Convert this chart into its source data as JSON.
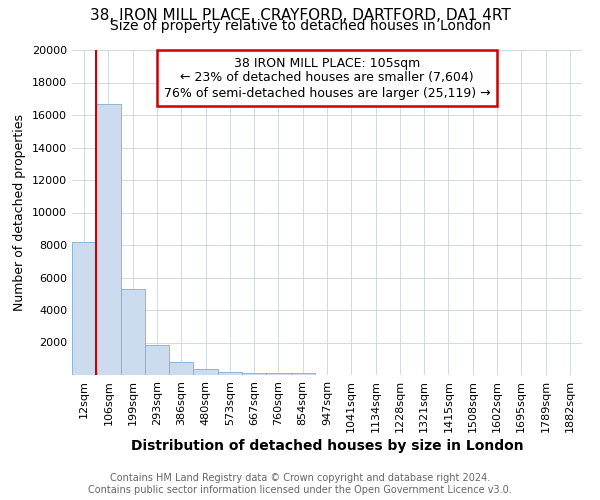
{
  "title_line1": "38, IRON MILL PLACE, CRAYFORD, DARTFORD, DA1 4RT",
  "title_line2": "Size of property relative to detached houses in London",
  "xlabel": "Distribution of detached houses by size in London",
  "ylabel": "Number of detached properties",
  "footer_line1": "Contains HM Land Registry data © Crown copyright and database right 2024.",
  "footer_line2": "Contains public sector information licensed under the Open Government Licence v3.0.",
  "annotation_line1": "38 IRON MILL PLACE: 105sqm",
  "annotation_line2": "← 23% of detached houses are smaller (7,604)",
  "annotation_line3": "76% of semi-detached houses are larger (25,119) →",
  "bar_labels": [
    "12sqm",
    "106sqm",
    "199sqm",
    "293sqm",
    "386sqm",
    "480sqm",
    "573sqm",
    "667sqm",
    "760sqm",
    "854sqm",
    "947sqm",
    "1041sqm",
    "1134sqm",
    "1228sqm",
    "1321sqm",
    "1415sqm",
    "1508sqm",
    "1602sqm",
    "1695sqm",
    "1789sqm",
    "1882sqm"
  ],
  "bar_values": [
    8200,
    16700,
    5300,
    1850,
    800,
    380,
    200,
    130,
    100,
    130,
    0,
    0,
    0,
    0,
    0,
    0,
    0,
    0,
    0,
    0,
    0
  ],
  "bar_color": "#ccdcee",
  "bar_edge_color": "#7bafd4",
  "vline_color": "#cc0000",
  "vline_x_index": 1,
  "ylim": [
    0,
    20000
  ],
  "yticks": [
    0,
    2000,
    4000,
    6000,
    8000,
    10000,
    12000,
    14000,
    16000,
    18000,
    20000
  ],
  "annotation_box_edge": "#cc0000",
  "background_color": "#ffffff",
  "grid_color": "#c8d4e0",
  "title_fontsize": 11,
  "subtitle_fontsize": 10,
  "axis_label_fontsize": 10,
  "tick_fontsize": 8,
  "footer_fontsize": 7,
  "annotation_fontsize": 9
}
